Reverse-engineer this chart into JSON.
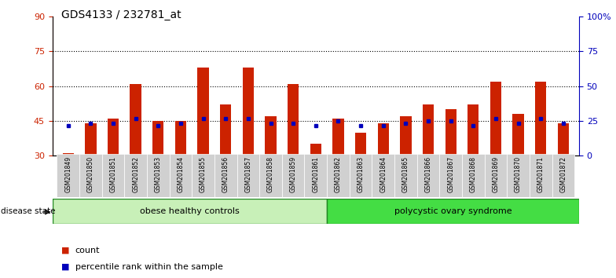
{
  "title": "GDS4133 / 232781_at",
  "samples": [
    "GSM201849",
    "GSM201850",
    "GSM201851",
    "GSM201852",
    "GSM201853",
    "GSM201854",
    "GSM201855",
    "GSM201856",
    "GSM201857",
    "GSM201858",
    "GSM201859",
    "GSM201861",
    "GSM201862",
    "GSM201863",
    "GSM201864",
    "GSM201865",
    "GSM201866",
    "GSM201867",
    "GSM201868",
    "GSM201869",
    "GSM201870",
    "GSM201871",
    "GSM201872"
  ],
  "counts": [
    31,
    44,
    46,
    61,
    45,
    45,
    68,
    52,
    68,
    47,
    61,
    35,
    46,
    40,
    44,
    47,
    52,
    50,
    52,
    62,
    48,
    62,
    44
  ],
  "percentile_ranks": [
    43,
    44,
    44,
    46,
    43,
    44,
    46,
    46,
    46,
    44,
    44,
    43,
    45,
    43,
    43,
    44,
    45,
    45,
    43,
    46,
    44,
    46,
    44
  ],
  "group1_label": "obese healthy controls",
  "group2_label": "polycystic ovary syndrome",
  "group1_count": 12,
  "bar_color": "#cc2200",
  "marker_color": "#0000bb",
  "bar_bottom": 30,
  "ylim_left": [
    30,
    90
  ],
  "ylim_right": [
    0,
    100
  ],
  "yticks_left": [
    30,
    45,
    60,
    75,
    90
  ],
  "yticks_right": [
    0,
    25,
    50,
    75,
    100
  ],
  "grid_values": [
    45,
    60,
    75
  ],
  "group1_color": "#c8f0b8",
  "group2_color": "#44dd44",
  "tick_bg_color": "#d0d0d0",
  "legend_count_label": "count",
  "legend_percentile_label": "percentile rank within the sample"
}
